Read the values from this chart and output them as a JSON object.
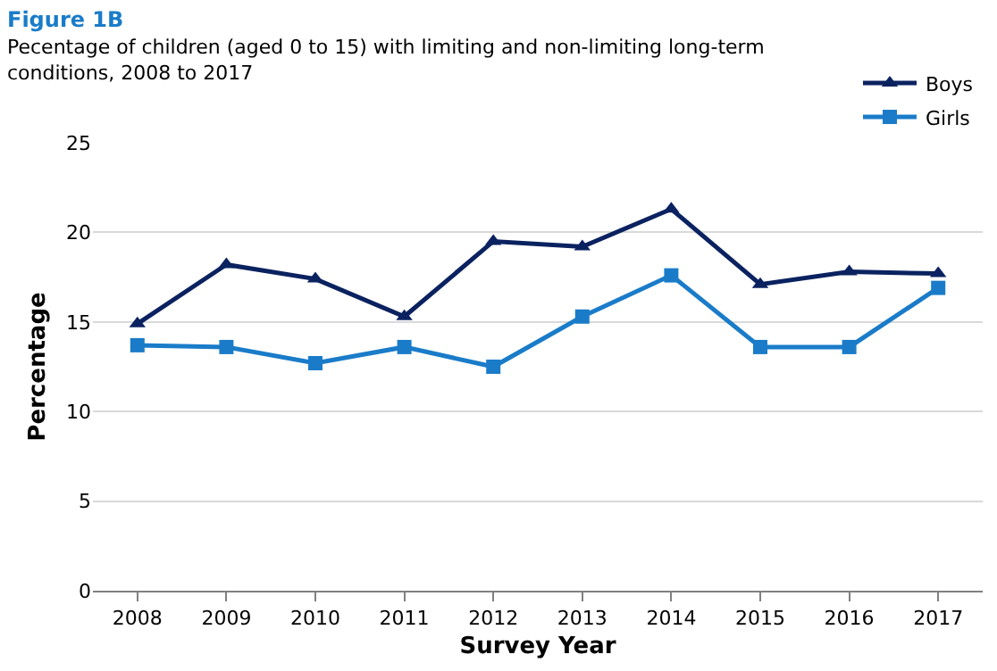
{
  "chart_data": {
    "type": "line",
    "title": "Figure 1B",
    "subtitle": "Pecentage of children (aged 0 to 15) with limiting and non-limiting long-term conditions, 2008 to 2017",
    "xlabel": "Survey Year",
    "ylabel": "Percentage",
    "categories": [
      "2008",
      "2009",
      "2010",
      "2011",
      "2012",
      "2013",
      "2014",
      "2015",
      "2016",
      "2017"
    ],
    "series": [
      {
        "name": "Boys",
        "color": "#0b2260",
        "marker": "triangle",
        "values": [
          14.9,
          18.2,
          17.4,
          15.3,
          19.5,
          19.2,
          21.3,
          17.1,
          17.8,
          17.7
        ]
      },
      {
        "name": "Girls",
        "color": "#1a7cc9",
        "marker": "square",
        "values": [
          13.7,
          13.6,
          12.7,
          13.6,
          12.5,
          15.3,
          17.6,
          13.6,
          13.6,
          16.9
        ]
      }
    ],
    "ylim": [
      0,
      25
    ],
    "yticks": [
      0,
      5,
      10,
      15,
      20,
      25
    ],
    "grid": "y",
    "legend": "top right",
    "line_style": "solid"
  }
}
